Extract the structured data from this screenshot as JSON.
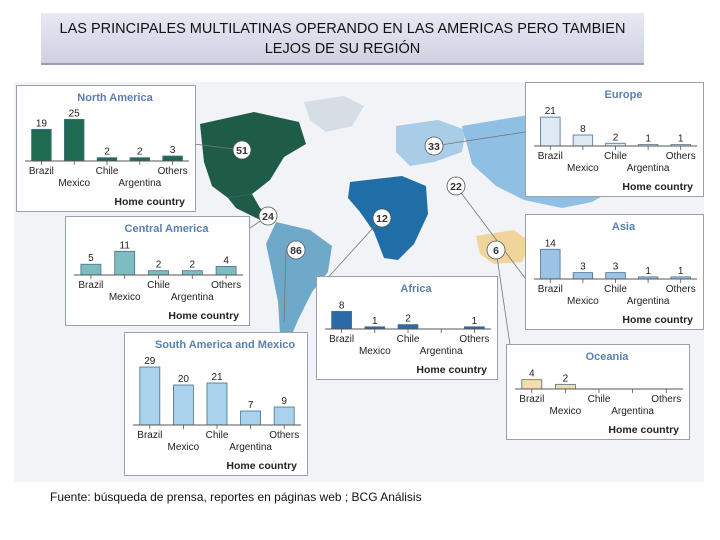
{
  "title": "LAS PRINCIPALES MULTILATINAS OPERANDO EN LAS AMERICAS PERO TAMBIEN LEJOS DE SU REGIÓN",
  "source": "Fuente: búsqueda de prensa, reportes en páginas web ; BCG Análisis",
  "map_markers": [
    {
      "value": "51",
      "color": "#1f5c48"
    },
    {
      "value": "33",
      "color": "#a9cde6"
    },
    {
      "value": "22",
      "color": "#8fbfe2"
    },
    {
      "value": "24",
      "color": "#1f5c48"
    },
    {
      "value": "12",
      "color": "#1f6ea8"
    },
    {
      "value": "86",
      "color": "#6fa9c9"
    },
    {
      "value": "6",
      "color": "#f1d49c"
    }
  ],
  "chart_data": [
    {
      "type": "bar",
      "title": "North America",
      "categories": [
        "Brazil",
        "Mexico",
        "Chile",
        "Argentina",
        "Others"
      ],
      "values": [
        19,
        25,
        2,
        2,
        3
      ],
      "xlabel": "Home country",
      "color": "#1f6b52"
    },
    {
      "type": "bar",
      "title": "Europe",
      "categories": [
        "Brazil",
        "Mexico",
        "Chile",
        "Argentina",
        "Others"
      ],
      "values": [
        21,
        8,
        2,
        1,
        1
      ],
      "xlabel": "Home country",
      "color": "#dfe9f4"
    },
    {
      "type": "bar",
      "title": "Central America",
      "categories": [
        "Brazil",
        "Mexico",
        "Chile",
        "Argentina",
        "Others"
      ],
      "values": [
        5,
        11,
        2,
        2,
        4
      ],
      "xlabel": "Home country",
      "color": "#7fbcc0"
    },
    {
      "type": "bar",
      "title": "Asia",
      "categories": [
        "Brazil",
        "Mexico",
        "Chile",
        "Argentina",
        "Others"
      ],
      "values": [
        14,
        3,
        3,
        1,
        1
      ],
      "xlabel": "Home country",
      "color": "#9cc3e6"
    },
    {
      "type": "bar",
      "title": "Africa",
      "categories": [
        "Brazil",
        "Mexico",
        "Chile",
        "Argentina",
        "Others"
      ],
      "values": [
        8,
        1,
        2,
        null,
        1
      ],
      "xlabel": "Home country",
      "color": "#2b6aa8"
    },
    {
      "type": "bar",
      "title": "South America and Mexico",
      "categories": [
        "Brazil",
        "Mexico",
        "Chile",
        "Argentina",
        "Others"
      ],
      "values": [
        29,
        20,
        21,
        7,
        9
      ],
      "xlabel": "Home country",
      "color": "#a9d3ec"
    },
    {
      "type": "bar",
      "title": "Oceania",
      "categories": [
        "Brazil",
        "Mexico",
        "Chile",
        "Argentina",
        "Others"
      ],
      "values": [
        4,
        2,
        null,
        null,
        null
      ],
      "xlabel": "Home country",
      "color": "#f3dcae"
    }
  ]
}
